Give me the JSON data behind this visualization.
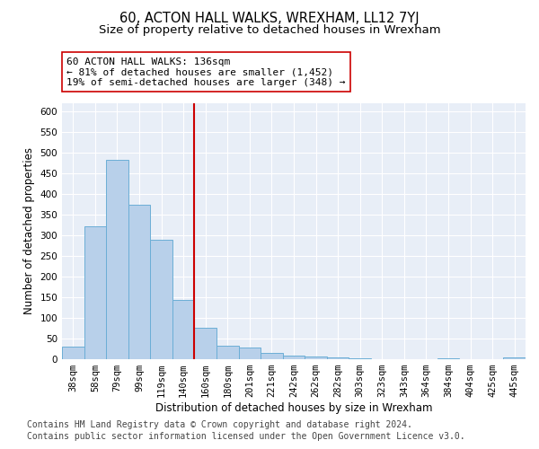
{
  "title": "60, ACTON HALL WALKS, WREXHAM, LL12 7YJ",
  "subtitle": "Size of property relative to detached houses in Wrexham",
  "xlabel": "Distribution of detached houses by size in Wrexham",
  "ylabel": "Number of detached properties",
  "categories": [
    "38sqm",
    "58sqm",
    "79sqm",
    "99sqm",
    "119sqm",
    "140sqm",
    "160sqm",
    "180sqm",
    "201sqm",
    "221sqm",
    "242sqm",
    "262sqm",
    "282sqm",
    "303sqm",
    "323sqm",
    "343sqm",
    "364sqm",
    "384sqm",
    "404sqm",
    "425sqm",
    "445sqm"
  ],
  "values": [
    31,
    321,
    484,
    374,
    290,
    144,
    77,
    32,
    29,
    16,
    8,
    7,
    4,
    2,
    1,
    1,
    0,
    3,
    0,
    0,
    4
  ],
  "bar_color": "#b8d0ea",
  "bar_edge_color": "#6baed6",
  "vline_position": 5.5,
  "vline_color": "#cc0000",
  "annotation_line1": "60 ACTON HALL WALKS: 136sqm",
  "annotation_line2": "← 81% of detached houses are smaller (1,452)",
  "annotation_line3": "19% of semi-detached houses are larger (348) →",
  "annotation_box_facecolor": "#ffffff",
  "annotation_box_edgecolor": "#cc0000",
  "ylim_max": 620,
  "yticks": [
    0,
    50,
    100,
    150,
    200,
    250,
    300,
    350,
    400,
    450,
    500,
    550,
    600
  ],
  "footer_line1": "Contains HM Land Registry data © Crown copyright and database right 2024.",
  "footer_line2": "Contains public sector information licensed under the Open Government Licence v3.0.",
  "plot_bg_color": "#e8eef7",
  "fig_bg_color": "#ffffff",
  "title_fontsize": 10.5,
  "subtitle_fontsize": 9.5,
  "axis_label_fontsize": 8.5,
  "tick_fontsize": 7.5,
  "annotation_fontsize": 8,
  "footer_fontsize": 7
}
